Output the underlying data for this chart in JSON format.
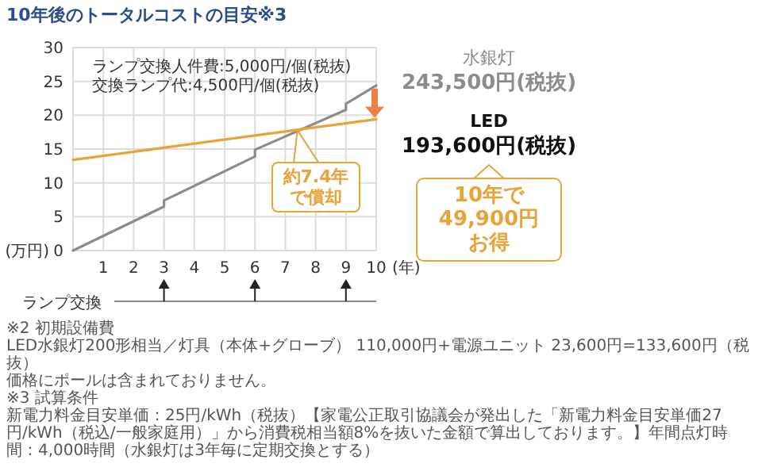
{
  "chart_data": {
    "type": "line",
    "title": "10年後のトータルコストの目安※3",
    "xlabel": "(年)",
    "ylabel": "(万円)",
    "series": [
      {
        "name": "水銀灯",
        "color": "#8c8c8c",
        "x": [
          0,
          3,
          3,
          6,
          6,
          9,
          9,
          10
        ],
        "values": [
          0,
          6.5,
          7.4,
          13.9,
          14.9,
          20.8,
          21.7,
          24.4
        ]
      },
      {
        "name": "LED",
        "color": "#e8a33a",
        "x": [
          0,
          10
        ],
        "values": [
          13.4,
          19.4
        ]
      }
    ],
    "xlim": [
      0,
      10
    ],
    "ylim": [
      0,
      30
    ],
    "xticks": [
      {
        "value": 0,
        "label": null
      },
      1,
      2,
      3,
      4,
      5,
      6,
      7,
      8,
      9,
      10
    ],
    "yticks": [
      0,
      5,
      10,
      15,
      20,
      25,
      30
    ],
    "grid": true,
    "line_style": "solid",
    "annotations": [
      "ランプ交換人件費:5,000円/個(税抜)",
      "交換ランプ代:4,500円/個(税抜)",
      "243,500円(税抜)",
      "193,600円(税抜)",
      {
        "text": "約7.4年で償却",
        "x": 7.4,
        "y": 17.8
      },
      "10年で49,900円お得",
      "ランプ交換",
      "※2 初期設備費",
      "LED水銀灯200形相当／灯具（本体+グローブ） 110,000円+電源ユニット 23,600円=133,600円（税抜）",
      "価格にポールは含まれておりません。",
      "※3 試算条件",
      "新電力料金目安単価：25円/kWh（税抜）【家電公正取引協議会が発出した「新電力料金目安単価27円/kWh（税込/一般家庭用）」から消費税相当額8%を抜いた金額で算出しております。】年間点灯時間：4,000時間（水銀灯は3年毎に定期交換とする）"
    ]
  }
}
